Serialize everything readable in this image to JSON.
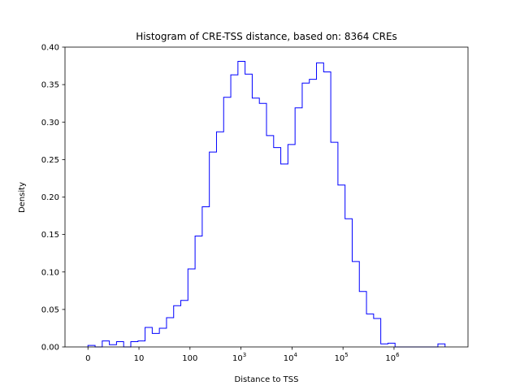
{
  "chart_data": {
    "type": "histogram-step",
    "title": "Histogram of CRE-TSS distance, based on: 8364 CREs",
    "xlabel": "Distance to TSS",
    "ylabel": "Density",
    "ylim": [
      0,
      0.4
    ],
    "y_ticks": [
      "0.00",
      "0.05",
      "0.10",
      "0.15",
      "0.20",
      "0.25",
      "0.30",
      "0.35",
      "0.40"
    ],
    "x_ticks": [
      {
        "value": 0,
        "label": "0"
      },
      {
        "value": 1,
        "label": "10"
      },
      {
        "value": 2,
        "label": "100"
      },
      {
        "value": 3,
        "label": "10",
        "exp": "3"
      },
      {
        "value": 4,
        "label": "10",
        "exp": "4"
      },
      {
        "value": 5,
        "label": "10",
        "exp": "5"
      },
      {
        "value": 6,
        "label": "10",
        "exp": "6"
      }
    ],
    "x_axis_range": [
      -0.45,
      7.45
    ],
    "line_color": "#0000ff",
    "bins": {
      "edges": [
        0.0,
        0.14,
        0.28,
        0.42,
        0.56,
        0.7,
        0.84,
        0.98,
        1.12,
        1.26,
        1.4,
        1.54,
        1.68,
        1.82,
        1.96,
        2.1,
        2.24,
        2.38,
        2.52,
        2.66,
        2.8,
        2.94,
        3.08,
        3.22,
        3.36,
        3.5,
        3.64,
        3.78,
        3.92,
        4.06,
        4.2,
        4.34,
        4.48,
        4.62,
        4.76,
        4.9,
        5.04,
        5.18,
        5.32,
        5.46,
        5.6,
        5.74,
        5.88,
        6.02,
        6.16,
        6.3,
        6.44,
        6.58,
        6.72,
        6.86,
        7.0
      ],
      "density": [
        0.002,
        0.0,
        0.008,
        0.003,
        0.007,
        0.0,
        0.007,
        0.008,
        0.026,
        0.018,
        0.025,
        0.039,
        0.055,
        0.062,
        0.104,
        0.148,
        0.187,
        0.26,
        0.287,
        0.333,
        0.363,
        0.381,
        0.364,
        0.332,
        0.325,
        0.282,
        0.266,
        0.244,
        0.27,
        0.319,
        0.352,
        0.357,
        0.379,
        0.367,
        0.273,
        0.216,
        0.171,
        0.114,
        0.074,
        0.044,
        0.038,
        0.004,
        0.005,
        0.0,
        0.0,
        0.0,
        0.0,
        0.0,
        0.0,
        0.004
      ]
    }
  }
}
